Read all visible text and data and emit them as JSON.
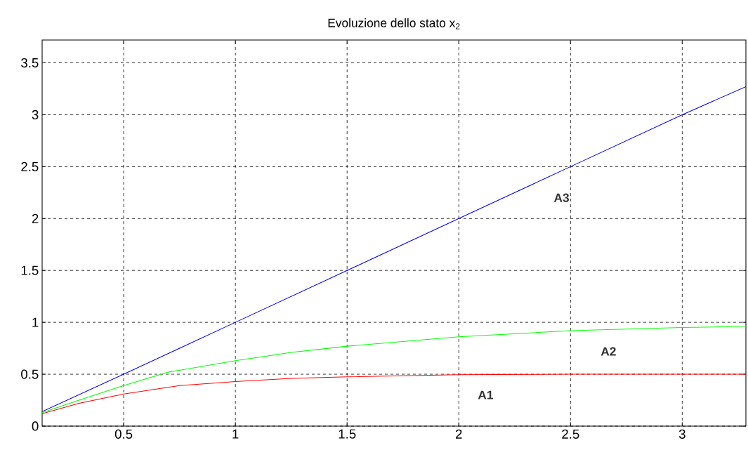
{
  "chart_data": {
    "type": "line",
    "title": "Evoluzione dello stato x$_{2}$",
    "xlim": [
      0.135,
      3.285
    ],
    "ylim": [
      0,
      3.72
    ],
    "xticks": [
      0.5,
      1,
      1.5,
      2,
      2.5,
      3
    ],
    "yticks": [
      0,
      0.5,
      1,
      1.5,
      2,
      2.5,
      3,
      3.5
    ],
    "grid": true,
    "line_style": "solid",
    "marker": "none",
    "series": [
      {
        "name": "A1",
        "color": "#ff0000",
        "x": [
          0.135,
          0.3,
          0.5,
          0.75,
          1,
          1.25,
          1.5,
          2,
          2.5,
          3.285
        ],
        "values": [
          0.12,
          0.22,
          0.31,
          0.39,
          0.43,
          0.46,
          0.475,
          0.495,
          0.5,
          0.5
        ]
      },
      {
        "name": "A2",
        "color": "#00ff00",
        "x": [
          0.135,
          0.3,
          0.5,
          0.7,
          1,
          1.25,
          1.5,
          2,
          2.5,
          3,
          3.285
        ],
        "values": [
          0.13,
          0.25,
          0.39,
          0.52,
          0.63,
          0.71,
          0.77,
          0.86,
          0.92,
          0.95,
          0.96
        ]
      },
      {
        "name": "A3",
        "color": "#0000ff",
        "x": [
          0.135,
          0.5,
          1,
          1.5,
          2,
          2.5,
          3,
          3.285
        ],
        "values": [
          0.14,
          0.5,
          1,
          1.5,
          2,
          2.5,
          3,
          3.27
        ]
      }
    ]
  }
}
